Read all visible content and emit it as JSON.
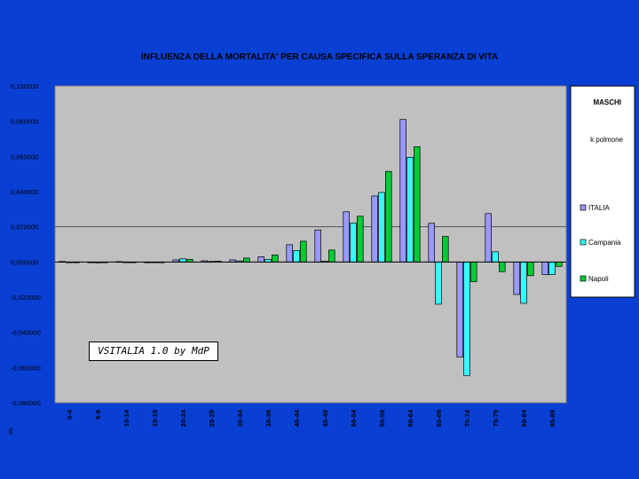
{
  "colors": {
    "background": "#0a3fd3",
    "plot_area": "#c0c0c0",
    "panel": "#ffffff",
    "series": [
      "#9999ff",
      "#33ffff",
      "#00cc33"
    ]
  },
  "labels": {
    "gender": "MASCHI",
    "cause": "k polmone",
    "corner": "ets"
  },
  "stamp": "VSITALIA 1.0 by MdP",
  "chart_data": {
    "type": "bar",
    "title": "INFLUENZA DELLA MORTALITA' PER CAUSA SPECIFICA SULLA SPERANZA DI VITA",
    "xlabel": "",
    "ylabel": "",
    "ylim": [
      -0.08,
      0.1
    ],
    "yticks": [
      0.1,
      0.08,
      0.06,
      0.04,
      0.02,
      0.0,
      -0.02,
      -0.04,
      -0.06,
      -0.08
    ],
    "ytick_labels": [
      "0,100000",
      "0,080000",
      "0,060000",
      "0,040000",
      "0,020000",
      "0,000000",
      "-0,020000",
      "-0,040000",
      "-0,060000",
      "-0,080000"
    ],
    "gridlines": [
      0.02
    ],
    "legend_position": "right",
    "categories": [
      "0-4",
      "5-9",
      "10-14",
      "15-19",
      "20-24",
      "25-29",
      "30-34",
      "35-39",
      "40-44",
      "45-49",
      "50-54",
      "55-59",
      "60-64",
      "65-69",
      "70-74",
      "75-79",
      "80-84",
      "85-89"
    ],
    "series": [
      {
        "name": "ITALIA",
        "values": [
          0.0003,
          0.0,
          0.0002,
          0.0,
          0.0012,
          0.0007,
          0.0012,
          0.003,
          0.0098,
          0.0182,
          0.0285,
          0.0375,
          0.081,
          0.022,
          -0.054,
          0.0275,
          -0.0185,
          -0.0072
        ]
      },
      {
        "name": "Campania",
        "values": [
          0.0,
          -0.0005,
          0.0,
          0.0,
          0.0018,
          0.0003,
          0.0006,
          0.0015,
          0.0065,
          0.0005,
          0.0222,
          0.0395,
          0.0595,
          -0.024,
          -0.0645,
          0.0058,
          -0.0235,
          -0.0072
        ]
      },
      {
        "name": "Napoli",
        "values": [
          0.0,
          0.0,
          0.0,
          0.0,
          0.0015,
          0.0005,
          0.0022,
          0.004,
          0.0118,
          0.0068,
          0.026,
          0.0515,
          0.0655,
          0.0145,
          -0.0112,
          -0.0055,
          -0.0078,
          -0.0025
        ]
      }
    ]
  }
}
